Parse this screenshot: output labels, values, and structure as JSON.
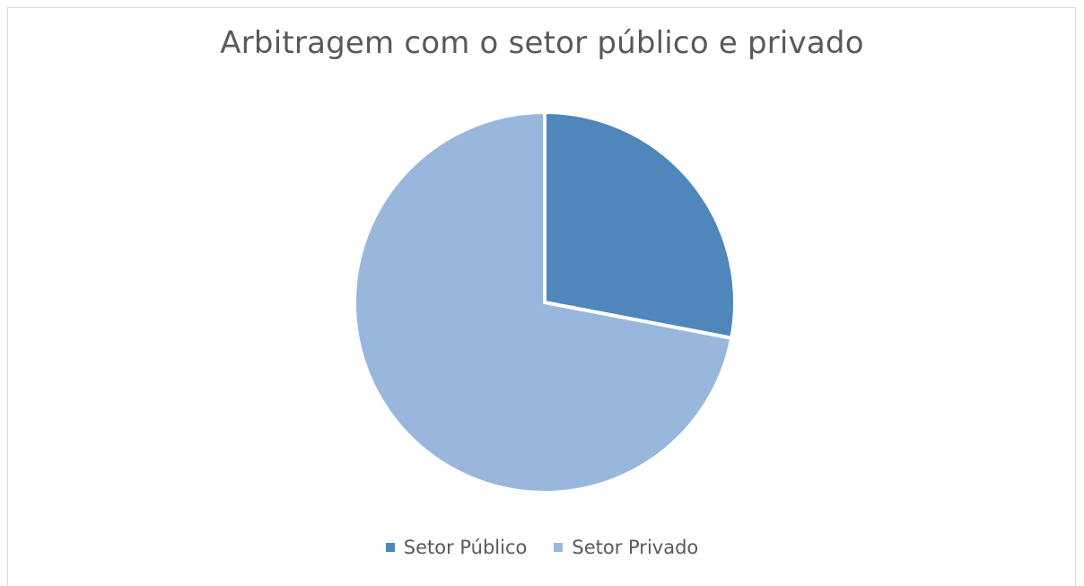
{
  "chart_data": {
    "type": "pie",
    "title": "Arbitragem com o setor público e privado",
    "legend_position": "bottom",
    "slices": [
      {
        "label": "Setor Público",
        "value": 28,
        "color": "#4f86bb"
      },
      {
        "label": "Setor Privado",
        "value": 72,
        "color": "#99b7dd"
      }
    ]
  }
}
